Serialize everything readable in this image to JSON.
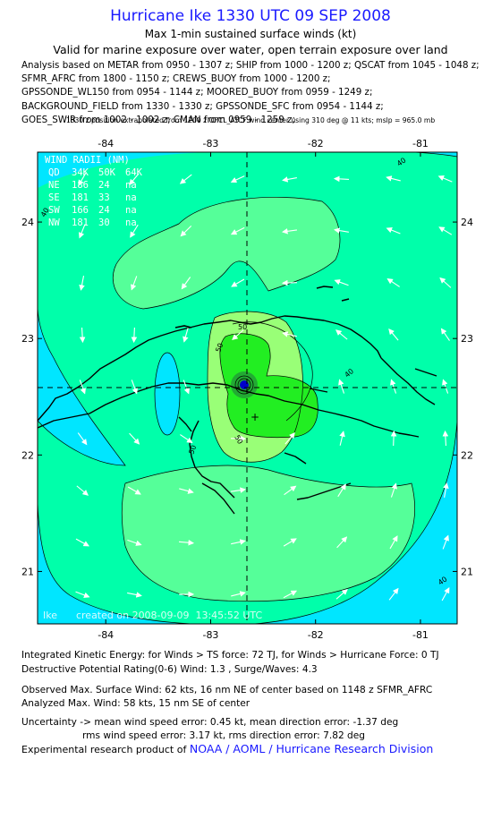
{
  "header": {
    "title": "Hurricane Ike 1330 UTC 09 SEP 2008",
    "subtitle": "Max 1-min sustained surface winds (kt)",
    "validity": "Valid for marine exposure over water, open terrain exposure over land",
    "analysis_lines": [
      "Analysis based on  METAR from 0950 - 1307 z;  SHIP from 1000 - 1200 z;  QSCAT from 1045 - 1048 z;",
      "SFMR_AFRC from 1800 - 1150 z;  CREWS_BUOY from 1000 - 1200 z;",
      "GPSSONDE_WL150 from 0954 - 1144 z;  MOORED_BUOY from 0959 - 1249 z;",
      "BACKGROUND_FIELD from 1330 - 1330 z;  GPSSONDE_SFC from 0954 - 1144 z;",
      "GOES_SWIR from 1002 - 1002 z;  CMAN from 0959 - 1259 z;"
    ],
    "position_note": "1330 z position extrapolated from 1200 z OFCL_ATCF wind center using 310 deg @ 11 kts; mslp = 965.0 mb"
  },
  "map": {
    "lon_ticks": [
      "-84",
      "-83",
      "-82",
      "-81"
    ],
    "lat_ticks": [
      "24",
      "23",
      "22",
      "21"
    ],
    "lon_range": [
      -84.65,
      -80.65
    ],
    "lat_range": [
      20.55,
      24.6
    ],
    "center": {
      "lon": -82.55,
      "lat": 22.6
    },
    "analyzed_max_mark": {
      "lon": -82.45,
      "lat": 22.33
    },
    "contour_labels": [
      "40",
      "40",
      "40",
      "40",
      "50",
      "50",
      "50",
      "50"
    ],
    "wind_radii": {
      "title": "WIND RADII (NM)",
      "header": [
        "QD",
        "34K",
        "50K",
        "64K"
      ],
      "rows": [
        [
          "NE",
          "186",
          "24",
          "na"
        ],
        [
          "SE",
          "181",
          "33",
          "na"
        ],
        [
          "SW",
          "166",
          "24",
          "na"
        ],
        [
          "NW",
          "181",
          "30",
          "na"
        ]
      ]
    },
    "stamp": "Ike      created on 2008-09-09  13:45:52 UTC",
    "colors": {
      "below_34": "#00e6ff",
      "34_to_50": "#00ffaa",
      "r1": "#55ff99",
      "r2": "#99ff77",
      "50_to_64": "#22ee22",
      "core": "#22aa33",
      "eye": "#0000cc",
      "ocean": "#00e6ff"
    }
  },
  "stats": {
    "ike": "Integrated Kinetic Energy:  for Winds > TS force: 72 TJ,  for Winds > Hurricane Force: 0 TJ",
    "dpr": "Destructive Potential Rating(0-6)   Wind: 1.3 , Surge/Waves: 4.3",
    "observed": "Observed Max. Surface Wind: 62 kts, 16 nm NE of center based on 1148 z SFMR_AFRC",
    "analyzed": "Analyzed Max. Wind: 58 kts, 15 nm SE of center",
    "uncert1": "Uncertainty -> mean wind speed error: 0.45 kt,   mean direction error:  -1.37 deg",
    "uncert2": "rms wind speed error: 3.17 kt,   rms direction error: 7.82 deg"
  },
  "footer": {
    "prefix": "Experimental research product of ",
    "org": "NOAA / AOML / Hurricane Research Division"
  }
}
